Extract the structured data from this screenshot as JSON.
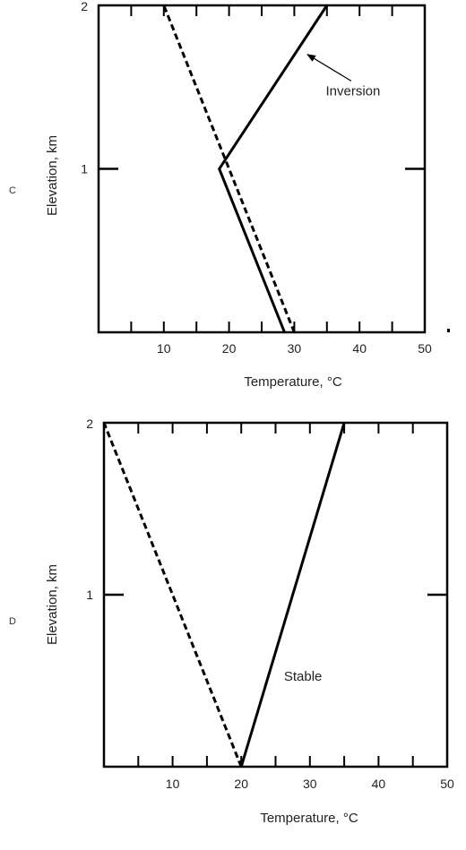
{
  "chart_data": [
    {
      "type": "line",
      "panel_label": "C",
      "xlabel": "Temperature, °C",
      "ylabel": "Elevation, km",
      "xlim": [
        0,
        50
      ],
      "ylim": [
        0,
        2
      ],
      "x_ticks": [
        10,
        20,
        30,
        40,
        50
      ],
      "y_ticks": [
        1,
        2
      ],
      "series": [
        {
          "style": "dashed",
          "points": [
            [
              30,
              0
            ],
            [
              10,
              2
            ]
          ]
        },
        {
          "style": "solid",
          "points": [
            [
              28.5,
              0
            ],
            [
              18.5,
              1
            ],
            [
              35,
              2
            ]
          ]
        }
      ],
      "annotations": [
        {
          "text": "Inversion",
          "x": 39,
          "y": 1.45,
          "arrow_to": [
            32,
            1.7
          ]
        }
      ]
    },
    {
      "type": "line",
      "panel_label": "D",
      "xlabel": "Temperature, °C",
      "ylabel": "Elevation, km",
      "xlim": [
        0,
        50
      ],
      "ylim": [
        0,
        2
      ],
      "x_ticks": [
        10,
        20,
        30,
        40,
        50
      ],
      "y_ticks": [
        1,
        2
      ],
      "series": [
        {
          "style": "dashed",
          "points": [
            [
              20,
              0
            ],
            [
              0,
              2
            ]
          ]
        },
        {
          "style": "solid",
          "points": [
            [
              20,
              0
            ],
            [
              35,
              2
            ]
          ]
        }
      ],
      "annotations": [
        {
          "text": "Stable",
          "x": 29,
          "y": 0.5
        }
      ]
    }
  ]
}
